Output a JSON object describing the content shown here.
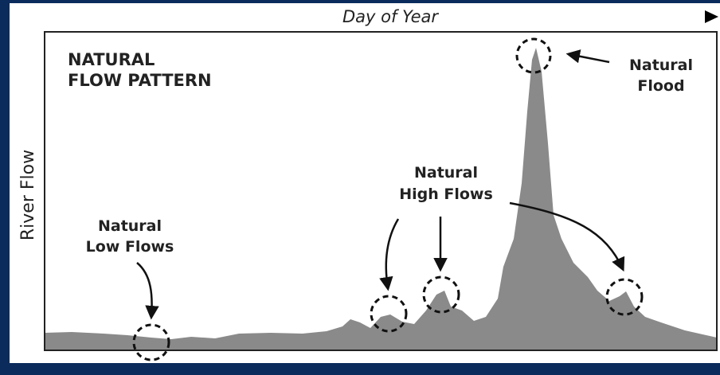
{
  "axes": {
    "x_label": "Day of Year",
    "y_label": "River Flow"
  },
  "title": {
    "lines": [
      "NATURAL",
      "FLOW PATTERN"
    ]
  },
  "annotations": [
    {
      "lines": [
        "Natural",
        "Flood"
      ]
    },
    {
      "lines": [
        "Natural",
        "High Flows"
      ]
    },
    {
      "lines": [
        "Natural",
        "Low Flows"
      ]
    }
  ]
}
